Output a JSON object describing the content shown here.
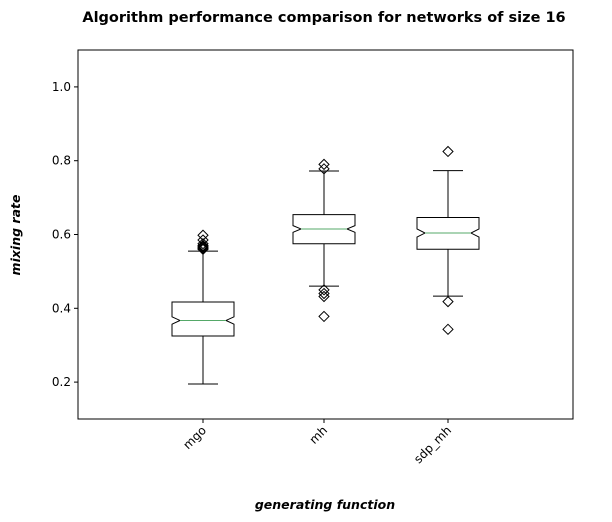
{
  "chart_data": {
    "type": "boxplot",
    "title": "Algorithm performance comparison for networks of size 16",
    "xlabel": "generating function",
    "ylabel": "mixing rate",
    "ylim": [
      0.1,
      1.1
    ],
    "yticks": [
      "0.2",
      "0.4",
      "0.6",
      "0.8",
      "1.0"
    ],
    "categories": [
      "mgo",
      "mh",
      "sdp_mh"
    ],
    "notched": true,
    "boxes": [
      {
        "name": "mgo",
        "whisker_low": 0.195,
        "q1": 0.325,
        "median": 0.367,
        "q3": 0.417,
        "whisker_high": 0.555,
        "notch_low": 0.357,
        "notch_high": 0.377,
        "outliers": [
          0.56,
          0.562,
          0.565,
          0.568,
          0.57,
          0.575,
          0.585,
          0.598
        ]
      },
      {
        "name": "mh",
        "whisker_low": 0.46,
        "q1": 0.575,
        "median": 0.615,
        "q3": 0.654,
        "whisker_high": 0.772,
        "notch_low": 0.606,
        "notch_high": 0.624,
        "outliers": [
          0.378,
          0.432,
          0.44,
          0.45,
          0.778,
          0.79
        ]
      },
      {
        "name": "sdp_mh",
        "whisker_low": 0.433,
        "q1": 0.56,
        "median": 0.604,
        "q3": 0.646,
        "whisker_high": 0.773,
        "notch_low": 0.593,
        "notch_high": 0.615,
        "outliers": [
          0.343,
          0.418,
          0.825
        ]
      }
    ],
    "colors": {
      "box": "#000000",
      "median": "#55a868",
      "background": "#ffffff"
    }
  }
}
